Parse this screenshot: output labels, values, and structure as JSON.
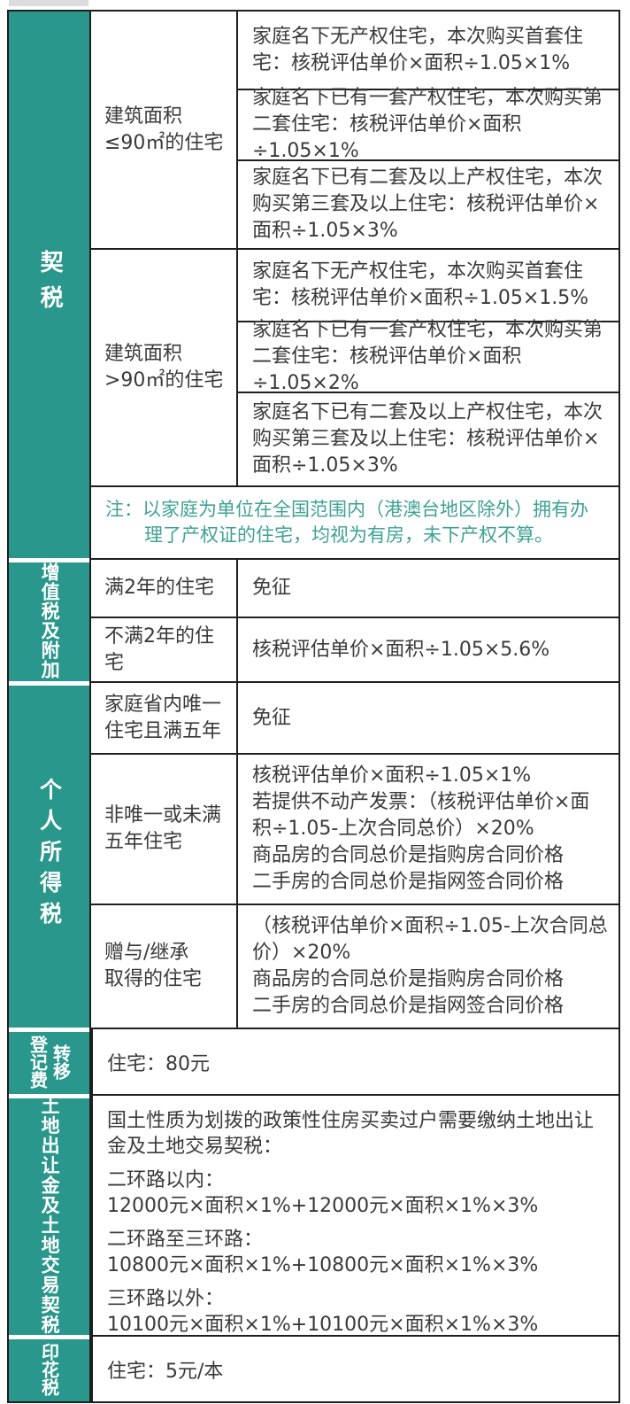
{
  "colors": {
    "category_column": "#2a978c",
    "note_text": "#3fa295",
    "body_text": "#3a3a3a",
    "table_border": "#1f1f1f",
    "top_strip": "#dcdcdc",
    "background": "#ffffff"
  },
  "sections": [
    {
      "label": "契税",
      "groups": [
        {
          "condition": "建筑面积\n≤90㎡的住宅",
          "rows": [
            "家庭名下无产权住宅，本次购买首套住宅：核税评估单价×面积÷1.05×1%",
            "家庭名下已有一套产权住宅，本次购买第二套住宅：核税评估单价×面积÷1.05×1%",
            "家庭名下已有二套及以上产权住宅，本次购买第三套及以上住宅：核税评估单价×面积÷1.05×3%"
          ]
        },
        {
          "condition": "建筑面积\n>90㎡的住宅",
          "rows": [
            "家庭名下无产权住宅，本次购买首套住宅：核税评估单价×面积÷1.05×1.5%",
            "家庭名下已有一套产权住宅，本次购买第二套住宅：核税评估单价×面积÷1.05×2%",
            "家庭名下已有二套及以上产权住宅，本次购买第三套及以上住宅：核税评估单价×面积÷1.05×3%"
          ]
        }
      ],
      "note": "注：以家庭为单位在全国范围内（港澳台地区除外）拥有办理了产权证的住宅，均视为有房，未下产权不算。"
    },
    {
      "label": "增值税及附加",
      "rows": [
        {
          "condition": "满2年的住宅",
          "content": "免征"
        },
        {
          "condition": "不满2年的住宅",
          "content": "核税评估单价×面积÷1.05×5.6%"
        }
      ]
    },
    {
      "label": "个人所得税",
      "rows": [
        {
          "condition": "家庭省内唯一\n住宅且满五年",
          "lines": [
            "免征"
          ]
        },
        {
          "condition": "非唯一或未满\n五年住宅",
          "lines": [
            "核税评估单价×面积÷1.05×1%",
            "若提供不动产发票：（核税评估单价×面积÷1.05-上次合同总价）×20%",
            "商品房的合同总价是指购房合同价格",
            "二手房的合同总价是指网签合同价格"
          ]
        },
        {
          "condition": "赠与/继承\n取得的住宅",
          "lines": [
            "（核税评估单价×面积÷1.05-上次合同总价）×20%",
            "商品房的合同总价是指购房合同价格",
            "二手房的合同总价是指网签合同价格"
          ]
        }
      ]
    },
    {
      "label": "转移\n登记费",
      "content": "住宅：80元"
    },
    {
      "label": "土地出让金及土地交易契税",
      "intro": "国土性质为划拨的政策性住房买卖过户需要缴纳土地出让金及土地交易契税：",
      "zones": [
        {
          "name": "二环路以内：",
          "formula": "12000元×面积×1%+12000元×面积×1%×3%"
        },
        {
          "name": "二环路至三环路：",
          "formula": "10800元×面积×1%+10800元×面积×1%×3%"
        },
        {
          "name": "三环路以外：",
          "formula": "10100元×面积×1%+10100元×面积×1%×3%"
        }
      ]
    },
    {
      "label": "印花税",
      "content": "住宅：5元/本"
    }
  ]
}
